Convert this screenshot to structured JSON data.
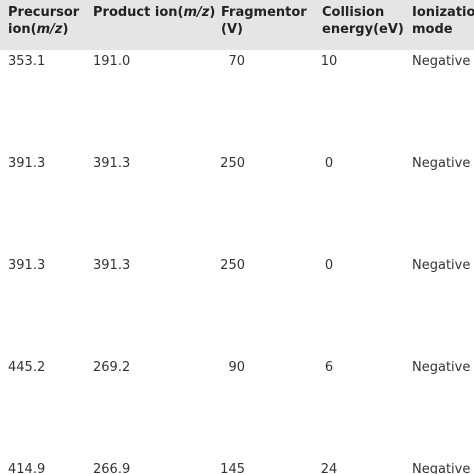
{
  "table": {
    "header": [
      [
        "Precursor ion(",
        "m/z",
        ")"
      ],
      [
        "Product ion(",
        "m/z",
        ")"
      ],
      [
        "Fragmentor (V)"
      ],
      [
        "Collision energy(eV)"
      ],
      [
        "Ionization mode"
      ]
    ],
    "rows": [
      [
        "353.1",
        "191.0",
        "70",
        "10",
        "Negative"
      ],
      [
        "391.3",
        "391.3",
        "250",
        "0",
        "Negative"
      ],
      [
        "391.3",
        "391.3",
        "250",
        "0",
        "Negative"
      ],
      [
        "445.2",
        "269.2",
        "90",
        "6",
        "Negative"
      ],
      [
        "414.9",
        "266.9",
        "145",
        "24",
        "Negative"
      ]
    ]
  }
}
